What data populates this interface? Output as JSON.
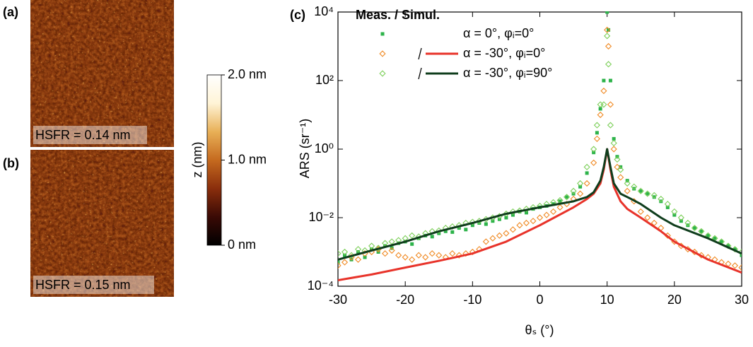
{
  "afm_images": [
    {
      "panel_label": "(a)",
      "annotation": "HSFR = 0.14 nm"
    },
    {
      "panel_label": "(b)",
      "annotation": "HSFR = 0.15 nm"
    }
  ],
  "colorbar": {
    "axis_label": "z (nm)",
    "range": [
      0,
      2
    ],
    "ticks": [
      {
        "value": 2,
        "label": "2.0 nm"
      },
      {
        "value": 1,
        "label": "1.0 nm"
      },
      {
        "value": 0,
        "label": "0 nm"
      }
    ],
    "colors": [
      "#000000",
      "#3a0a05",
      "#8a2e0c",
      "#c56a1f",
      "#e8b057",
      "#fff4d6",
      "#ffffff"
    ]
  },
  "chart_data": {
    "type": "scatter",
    "panel_label": "(c)",
    "legend_title": "Meas. /  Simul.",
    "x_label": "θₛ (°)",
    "y_label": "ARS (sr⁻¹)",
    "y_scale": "log",
    "xlim": [
      -30,
      30
    ],
    "xticks": [
      -30,
      -20,
      -10,
      0,
      10,
      20,
      30
    ],
    "ylim": [
      0.0001,
      10000
    ],
    "yticks": [
      {
        "value": 0.0001,
        "label": "10⁻⁴"
      },
      {
        "value": 0.01,
        "label": "10⁻²"
      },
      {
        "value": 1,
        "label": "10⁰"
      },
      {
        "value": 100,
        "label": "10²"
      },
      {
        "value": 10000,
        "label": "10⁴"
      }
    ],
    "series": [
      {
        "name": "α = 0°, φᵢ=0°",
        "measured": {
          "marker": "square",
          "color": "#2db34a",
          "x": [
            -30,
            -29,
            -28,
            -27,
            -26,
            -25,
            -24,
            -23,
            -22,
            -21,
            -20,
            -19,
            -18,
            -17,
            -16,
            -15,
            -14,
            -13,
            -12,
            -11,
            -10,
            -9,
            -8,
            -7,
            -6,
            -5,
            -4,
            -3,
            -2,
            -1,
            0,
            1,
            2,
            3,
            4,
            5,
            6,
            7,
            8,
            8.5,
            9,
            9.5,
            10,
            10.2,
            10.5,
            11,
            11.5,
            12,
            13,
            14,
            15,
            16,
            17,
            18,
            19,
            20,
            21,
            22,
            23,
            24,
            25,
            26,
            27,
            28,
            29,
            30
          ],
          "values": [
            0.0005,
            0.0008,
            0.0006,
            0.001,
            0.0007,
            0.0012,
            0.001,
            0.0015,
            0.0013,
            0.0018,
            0.002,
            0.0017,
            0.0025,
            0.003,
            0.0028,
            0.0035,
            0.004,
            0.0038,
            0.005,
            0.0045,
            0.006,
            0.007,
            0.0065,
            0.008,
            0.009,
            0.01,
            0.012,
            0.015,
            0.014,
            0.018,
            0.02,
            0.022,
            0.025,
            0.03,
            0.04,
            0.05,
            0.08,
            0.2,
            0.8,
            3,
            15,
            100,
            10000,
            3000,
            100,
            2,
            0.6,
            0.3,
            0.12,
            0.07,
            0.06,
            0.05,
            0.04,
            0.03,
            0.02,
            0.012,
            0.008,
            0.006,
            0.005,
            0.004,
            0.003,
            0.0025,
            0.002,
            0.0015,
            0.0012,
            0.0008
          ]
        }
      },
      {
        "name": "α = -30°, φᵢ=0°",
        "measured": {
          "marker": "diamond",
          "color": "#f08a24",
          "x": [
            -30,
            -29,
            -28,
            -27,
            -26,
            -25,
            -24,
            -23,
            -22,
            -21,
            -20,
            -19,
            -18,
            -17,
            -16,
            -15,
            -14,
            -13,
            -12,
            -11,
            -10,
            -9,
            -8,
            -7,
            -6,
            -5,
            -4,
            -3,
            -2,
            -1,
            0,
            1,
            2,
            3,
            4,
            5,
            6,
            7,
            8,
            8.5,
            9,
            9.5,
            10,
            10.2,
            10.5,
            11,
            11.5,
            12,
            13,
            14,
            15,
            16,
            17,
            18,
            19,
            20,
            21,
            22,
            23,
            24,
            25,
            26,
            27,
            28,
            29,
            30
          ],
          "values": [
            0.0004,
            0.0005,
            0.0007,
            0.0006,
            0.0009,
            0.001,
            0.0012,
            0.0009,
            0.0011,
            0.0008,
            0.0007,
            0.0006,
            0.0008,
            0.0007,
            0.0009,
            0.0008,
            0.0007,
            0.0009,
            0.0008,
            0.0009,
            0.001,
            0.0012,
            0.002,
            0.0025,
            0.003,
            0.0035,
            0.0045,
            0.006,
            0.007,
            0.008,
            0.01,
            0.012,
            0.015,
            0.02,
            0.025,
            0.035,
            0.05,
            0.1,
            0.4,
            2,
            10,
            50,
            3000,
            1000,
            20,
            1,
            0.3,
            0.15,
            0.06,
            0.03,
            0.015,
            0.01,
            0.007,
            0.005,
            0.003,
            0.002,
            0.0015,
            0.0012,
            0.001,
            0.0008,
            0.0007,
            0.0006,
            0.0005,
            0.00045,
            0.0004,
            0.00035
          ]
        },
        "simulated": {
          "color": "#e8332a",
          "x": [
            -30,
            -25,
            -20,
            -15,
            -10,
            -5,
            0,
            5,
            7,
            8,
            9,
            9.5,
            10,
            10.5,
            11,
            12,
            13,
            15,
            18,
            20,
            25,
            30
          ],
          "values": [
            0.00015,
            0.00022,
            0.00035,
            0.00055,
            0.0009,
            0.002,
            0.006,
            0.02,
            0.035,
            0.05,
            0.1,
            0.25,
            1,
            0.25,
            0.08,
            0.03,
            0.018,
            0.01,
            0.004,
            0.002,
            0.0006,
            0.00025
          ]
        }
      },
      {
        "name": "α = -30°, φᵢ=90°",
        "measured": {
          "marker": "diamond",
          "color": "#7dcf5a",
          "x": [
            -30,
            -29,
            -28,
            -27,
            -26,
            -25,
            -24,
            -23,
            -22,
            -21,
            -20,
            -19,
            -18,
            -17,
            -16,
            -15,
            -14,
            -13,
            -12,
            -11,
            -10,
            -9,
            -8,
            -7,
            -6,
            -5,
            -4,
            -3,
            -2,
            -1,
            0,
            1,
            2,
            3,
            4,
            5,
            6,
            7,
            8,
            8.5,
            9,
            9.5,
            10,
            10.2,
            10.5,
            11,
            11.5,
            12,
            13,
            14,
            15,
            16,
            17,
            18,
            19,
            20,
            21,
            22,
            23,
            24,
            25,
            26,
            27,
            28,
            29,
            30
          ],
          "values": [
            0.0009,
            0.001,
            0.0008,
            0.0012,
            0.0011,
            0.0015,
            0.0013,
            0.0018,
            0.002,
            0.0022,
            0.0025,
            0.003,
            0.0028,
            0.0035,
            0.004,
            0.0042,
            0.005,
            0.0055,
            0.006,
            0.007,
            0.0075,
            0.008,
            0.009,
            0.01,
            0.011,
            0.013,
            0.015,
            0.016,
            0.018,
            0.02,
            0.022,
            0.025,
            0.028,
            0.032,
            0.04,
            0.06,
            0.1,
            0.3,
            1,
            5,
            20,
            20,
            2000,
            300,
            5,
            1.5,
            0.5,
            0.25,
            0.1,
            0.08,
            0.06,
            0.05,
            0.045,
            0.035,
            0.025,
            0.015,
            0.01,
            0.007,
            0.005,
            0.004,
            0.003,
            0.0025,
            0.002,
            0.0015,
            0.0012,
            0.001
          ]
        },
        "simulated": {
          "color": "#0f3d1c",
          "x": [
            -30,
            -25,
            -20,
            -15,
            -10,
            -5,
            0,
            5,
            7,
            8,
            9,
            9.5,
            10,
            10.5,
            11,
            12,
            13,
            15,
            18,
            20,
            25,
            30
          ],
          "values": [
            0.0006,
            0.0011,
            0.002,
            0.004,
            0.007,
            0.013,
            0.02,
            0.03,
            0.04,
            0.055,
            0.12,
            0.3,
            1,
            0.3,
            0.1,
            0.05,
            0.04,
            0.025,
            0.01,
            0.006,
            0.0025,
            0.0009
          ]
        }
      }
    ]
  }
}
